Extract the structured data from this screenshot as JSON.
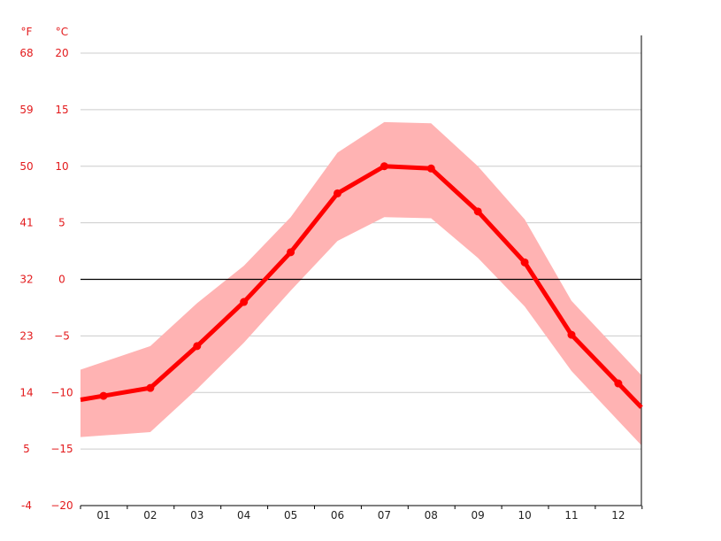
{
  "chart_data": {
    "type": "line",
    "title": "",
    "categories": [
      "01",
      "02",
      "03",
      "04",
      "05",
      "06",
      "07",
      "08",
      "09",
      "10",
      "11",
      "12"
    ],
    "series": [
      {
        "values": [
          -10.3,
          -9.6,
          -5.9,
          -2.0,
          2.4,
          7.6,
          10.0,
          9.8,
          6.0,
          1.5,
          -4.9,
          -9.2
        ]
      }
    ],
    "band": {
      "upper": [
        -7.3,
        -5.9,
        -2.1,
        1.2,
        5.5,
        11.2,
        13.9,
        13.8,
        10.0,
        5.3,
        -1.9,
        -6.3
      ],
      "lower": [
        -13.8,
        -13.5,
        -9.7,
        -5.6,
        -1.0,
        3.4,
        5.5,
        5.4,
        1.9,
        -2.4,
        -8.1,
        -12.5
      ]
    },
    "ylim": [
      -20,
      25
    ],
    "y_ticks_c": [
      20,
      15,
      10,
      5,
      0,
      -5,
      -10,
      -15,
      -20
    ],
    "y_ticks_f": [
      68,
      59,
      50,
      41,
      32,
      23,
      14,
      5,
      -4
    ],
    "units": {
      "fahrenheit": "°F",
      "celsius": "°C"
    },
    "zero_line": true,
    "grid": true,
    "colors": {
      "line": "#ff0000",
      "band": "#ffb3b3",
      "grid": "#cccccc",
      "axis_labels": "#e31a1c",
      "zero_line": "#000000"
    }
  }
}
